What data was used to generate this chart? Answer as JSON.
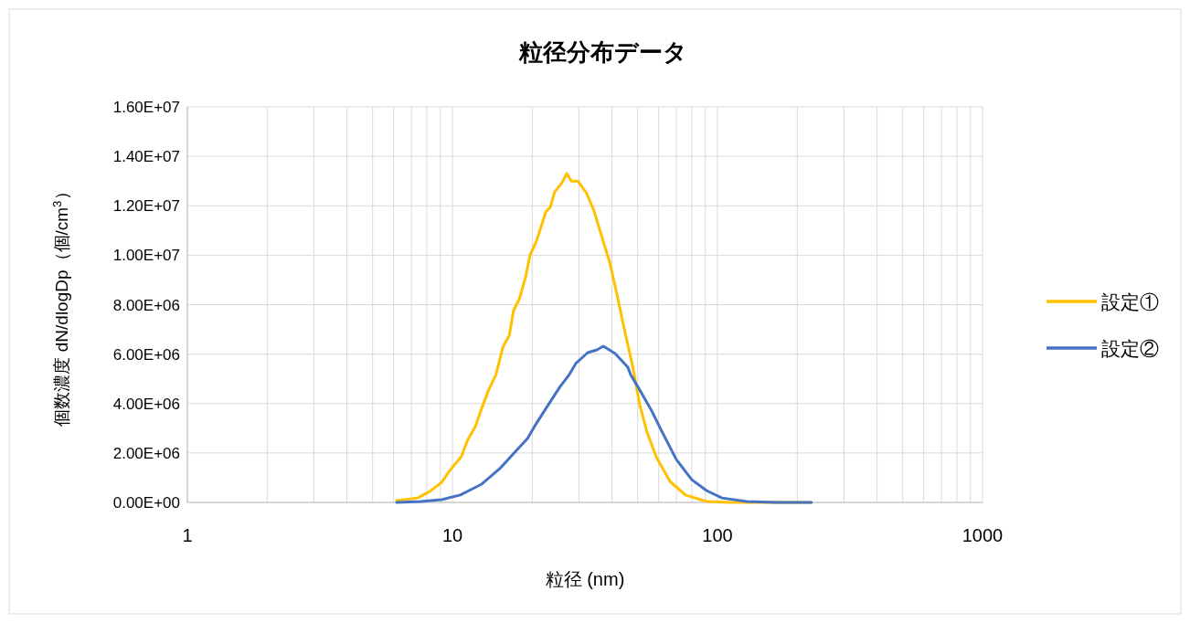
{
  "chart_data": {
    "type": "line",
    "title": "粒径分布データ",
    "xlabel": "粒径 (nm)",
    "ylabel": "個数濃度 dN/dlogDp（個/cm$^{3}$）",
    "log": "x",
    "grid": true,
    "legend": "right",
    "xlim": [
      1,
      1000
    ],
    "xticks": [
      1,
      10,
      100,
      1000
    ],
    "ylim": [
      0,
      16000000
    ],
    "yticks": [
      {
        "value": 0,
        "label": "0.00E+00"
      },
      {
        "value": 2000000,
        "label": "2.00E+06"
      },
      {
        "value": 4000000,
        "label": "4.00E+06"
      },
      {
        "value": 6000000,
        "label": "6.00E+06"
      },
      {
        "value": 8000000,
        "label": "8.00E+06"
      },
      {
        "value": 10000000,
        "label": "1.00E+07"
      },
      {
        "value": 12000000,
        "label": "1.20E+07"
      },
      {
        "value": 14000000,
        "label": "1.40E+07"
      },
      {
        "value": 16000000,
        "label": "1.60E+07"
      }
    ],
    "series": [
      {
        "name": "設定①",
        "color": "#ffc000",
        "x": [
          6.16,
          7.39,
          8.2,
          9.1,
          9.77,
          10.8,
          11.4,
          12.2,
          12.9,
          13.7,
          14.6,
          15.5,
          16.4,
          17.0,
          17.9,
          18.9,
          19.6,
          20.8,
          22.5,
          23.4,
          24.3,
          25.9,
          27.0,
          28.1,
          29.7,
          32.1,
          34.2,
          36.5,
          39.2,
          41.8,
          44.5,
          47.8,
          50.9,
          54.2,
          58.7,
          66.2,
          75.7,
          90.9,
          112,
          166,
          225
        ],
        "values": [
          70000,
          180000,
          440000,
          810000,
          1290000,
          1850000,
          2510000,
          3070000,
          3810000,
          4550000,
          5170000,
          6280000,
          6760000,
          7760000,
          8240000,
          9130000,
          9980000,
          10600000,
          11750000,
          11940000,
          12560000,
          12930000,
          13300000,
          13000000,
          13000000,
          12500000,
          11800000,
          10800000,
          9720000,
          8390000,
          7020000,
          5540000,
          3950000,
          2850000,
          1850000,
          850000,
          300000,
          40000,
          0,
          0,
          0
        ]
      },
      {
        "name": "設定②",
        "color": "#4472c4",
        "x": [
          6.16,
          7.57,
          9.1,
          10.7,
          12.9,
          15.1,
          17.2,
          19.2,
          20.8,
          23.0,
          25.5,
          27.6,
          29.2,
          32.4,
          35.1,
          37.1,
          41.1,
          45.9,
          47.0,
          50.9,
          56.5,
          61.1,
          69.9,
          80.0,
          90.9,
          104,
          129,
          166,
          226
        ],
        "values": [
          0,
          40000,
          110000,
          300000,
          740000,
          1370000,
          2030000,
          2590000,
          3220000,
          3950000,
          4690000,
          5170000,
          5620000,
          6060000,
          6170000,
          6320000,
          6020000,
          5470000,
          5170000,
          4550000,
          3700000,
          2960000,
          1740000,
          920000,
          480000,
          180000,
          40000,
          0,
          0
        ]
      }
    ]
  }
}
